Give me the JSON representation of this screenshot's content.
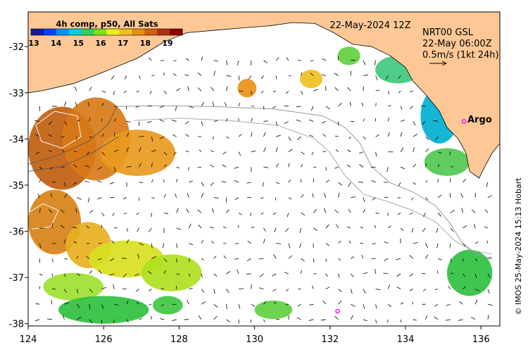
{
  "colorbar": {
    "title": "4h comp, p50, All Sats",
    "ticks": [
      "13",
      "14",
      "15",
      "16",
      "17",
      "18",
      "19"
    ],
    "colors": [
      "#1a1a9c",
      "#0040ff",
      "#0090ff",
      "#00d0e0",
      "#30d060",
      "#80e020",
      "#e8f020",
      "#f0c020",
      "#e89010",
      "#d06010",
      "#b03010",
      "#900000"
    ]
  },
  "header": {
    "date": "22-May-2024 12Z",
    "product": "NRT00 GSL",
    "time": "22-May 06:00Z",
    "scale_text": "0.5m/s (1kt 24h)"
  },
  "argo": {
    "label": "Argo",
    "floats": [
      {
        "lon": 135.55,
        "lat": -33.62
      },
      {
        "lon": 132.2,
        "lat": -37.73
      }
    ]
  },
  "credit": "© IMOS 25-May-2024 15:13 Hobart",
  "chart_data": {
    "type": "map",
    "xlim": [
      124,
      136.5
    ],
    "ylim": [
      -38.05,
      -31.25
    ],
    "x_ticks": [
      "124",
      "126",
      "128",
      "130",
      "132",
      "134",
      "136"
    ],
    "y_ticks": [
      "-32",
      "-33",
      "-34",
      "-35",
      "-36",
      "-37",
      "-38"
    ],
    "coast": [
      [
        124,
        -31.25
      ],
      [
        124,
        -33.0
      ],
      [
        124.4,
        -32.95
      ],
      [
        125.2,
        -32.8
      ],
      [
        126.0,
        -32.55
      ],
      [
        126.9,
        -32.25
      ],
      [
        127.6,
        -31.9
      ],
      [
        128.2,
        -31.7
      ],
      [
        128.9,
        -31.65
      ],
      [
        129.6,
        -31.6
      ],
      [
        130.4,
        -31.55
      ],
      [
        131.0,
        -31.48
      ],
      [
        131.6,
        -31.5
      ],
      [
        132.1,
        -31.7
      ],
      [
        132.6,
        -31.95
      ],
      [
        133.1,
        -32.0
      ],
      [
        133.6,
        -32.2
      ],
      [
        134.0,
        -32.45
      ],
      [
        134.2,
        -32.75
      ],
      [
        134.55,
        -33.05
      ],
      [
        134.9,
        -33.4
      ],
      [
        135.1,
        -33.75
      ],
      [
        135.4,
        -34.0
      ],
      [
        135.6,
        -34.3
      ],
      [
        135.7,
        -34.7
      ],
      [
        135.95,
        -34.85
      ],
      [
        136.1,
        -34.6
      ],
      [
        136.3,
        -34.3
      ],
      [
        136.5,
        -34.1
      ],
      [
        136.5,
        -31.25
      ]
    ],
    "sst_patches": [
      {
        "lon": 124.9,
        "lat": -34.2,
        "rx": 0.9,
        "ry": 0.9,
        "c": "#c06010"
      },
      {
        "lon": 125.8,
        "lat": -34.0,
        "rx": 0.9,
        "ry": 0.9,
        "c": "#d87a18"
      },
      {
        "lon": 126.9,
        "lat": -34.3,
        "rx": 1.0,
        "ry": 0.5,
        "c": "#e89a20"
      },
      {
        "lon": 124.7,
        "lat": -35.8,
        "rx": 0.7,
        "ry": 0.7,
        "c": "#d88218"
      },
      {
        "lon": 125.6,
        "lat": -36.3,
        "rx": 0.6,
        "ry": 0.5,
        "c": "#e8b020"
      },
      {
        "lon": 126.6,
        "lat": -36.6,
        "rx": 1.0,
        "ry": 0.4,
        "c": "#d8e020"
      },
      {
        "lon": 127.8,
        "lat": -36.9,
        "rx": 0.8,
        "ry": 0.4,
        "c": "#b0e020"
      },
      {
        "lon": 125.2,
        "lat": -37.2,
        "rx": 0.8,
        "ry": 0.3,
        "c": "#a0e030"
      },
      {
        "lon": 126.0,
        "lat": -37.7,
        "rx": 1.2,
        "ry": 0.3,
        "c": "#30c040"
      },
      {
        "lon": 127.7,
        "lat": -37.6,
        "rx": 0.4,
        "ry": 0.2,
        "c": "#40c840"
      },
      {
        "lon": 134.9,
        "lat": -33.5,
        "rx": 0.5,
        "ry": 0.6,
        "c": "#00b0d0"
      },
      {
        "lon": 135.1,
        "lat": -34.5,
        "rx": 0.6,
        "ry": 0.3,
        "c": "#50c850"
      },
      {
        "lon": 133.8,
        "lat": -32.5,
        "rx": 0.6,
        "ry": 0.3,
        "c": "#40c880"
      },
      {
        "lon": 135.7,
        "lat": -36.9,
        "rx": 0.6,
        "ry": 0.5,
        "c": "#30c040"
      },
      {
        "lon": 129.8,
        "lat": -32.9,
        "rx": 0.25,
        "ry": 0.2,
        "c": "#e89018"
      },
      {
        "lon": 131.5,
        "lat": -32.7,
        "rx": 0.3,
        "ry": 0.2,
        "c": "#f0c020"
      },
      {
        "lon": 132.5,
        "lat": -32.2,
        "rx": 0.3,
        "ry": 0.2,
        "c": "#60d040"
      },
      {
        "lon": 130.5,
        "lat": -37.7,
        "rx": 0.5,
        "ry": 0.2,
        "c": "#60d040"
      }
    ],
    "track1": [
      [
        126.0,
        -33.3
      ],
      [
        127.5,
        -33.28
      ],
      [
        129.0,
        -33.3
      ],
      [
        130.5,
        -33.35
      ],
      [
        131.8,
        -33.5
      ],
      [
        132.4,
        -33.75
      ],
      [
        132.8,
        -34.1
      ],
      [
        133.1,
        -34.6
      ],
      [
        133.6,
        -34.95
      ],
      [
        134.2,
        -35.15
      ],
      [
        134.8,
        -35.45
      ],
      [
        135.2,
        -35.85
      ],
      [
        135.5,
        -36.25
      ],
      [
        135.9,
        -36.5
      ],
      [
        136.3,
        -36.6
      ]
    ],
    "track2": [
      [
        126.8,
        -33.6
      ],
      [
        128.0,
        -33.55
      ],
      [
        129.3,
        -33.6
      ],
      [
        130.6,
        -33.7
      ],
      [
        131.6,
        -34.0
      ],
      [
        132.0,
        -34.3
      ],
      [
        132.4,
        -34.8
      ],
      [
        132.9,
        -35.2
      ],
      [
        133.5,
        -35.35
      ],
      [
        134.2,
        -35.55
      ],
      [
        134.8,
        -35.8
      ],
      [
        135.3,
        -36.2
      ],
      [
        135.7,
        -36.4
      ],
      [
        136.3,
        -36.5
      ]
    ],
    "sla_contours": [
      [
        [
          124.2,
          -33.7
        ],
        [
          124.7,
          -33.4
        ],
        [
          125.3,
          -33.5
        ],
        [
          125.4,
          -33.95
        ],
        [
          124.9,
          -34.2
        ],
        [
          124.35,
          -34.05
        ],
        [
          124.2,
          -33.7
        ]
      ],
      [
        [
          124.0,
          -35.6
        ],
        [
          124.4,
          -35.4
        ],
        [
          124.8,
          -35.55
        ],
        [
          124.6,
          -35.9
        ],
        [
          124.1,
          -35.95
        ]
      ]
    ],
    "ssh_contours": [
      [
        [
          124.0,
          -34.55
        ],
        [
          124.8,
          -34.35
        ],
        [
          125.6,
          -34.05
        ],
        [
          126.1,
          -33.7
        ],
        [
          126.35,
          -33.3
        ]
      ],
      [
        [
          124.0,
          -34.7
        ],
        [
          124.9,
          -34.6
        ],
        [
          125.7,
          -34.3
        ],
        [
          126.4,
          -33.95
        ]
      ]
    ]
  }
}
